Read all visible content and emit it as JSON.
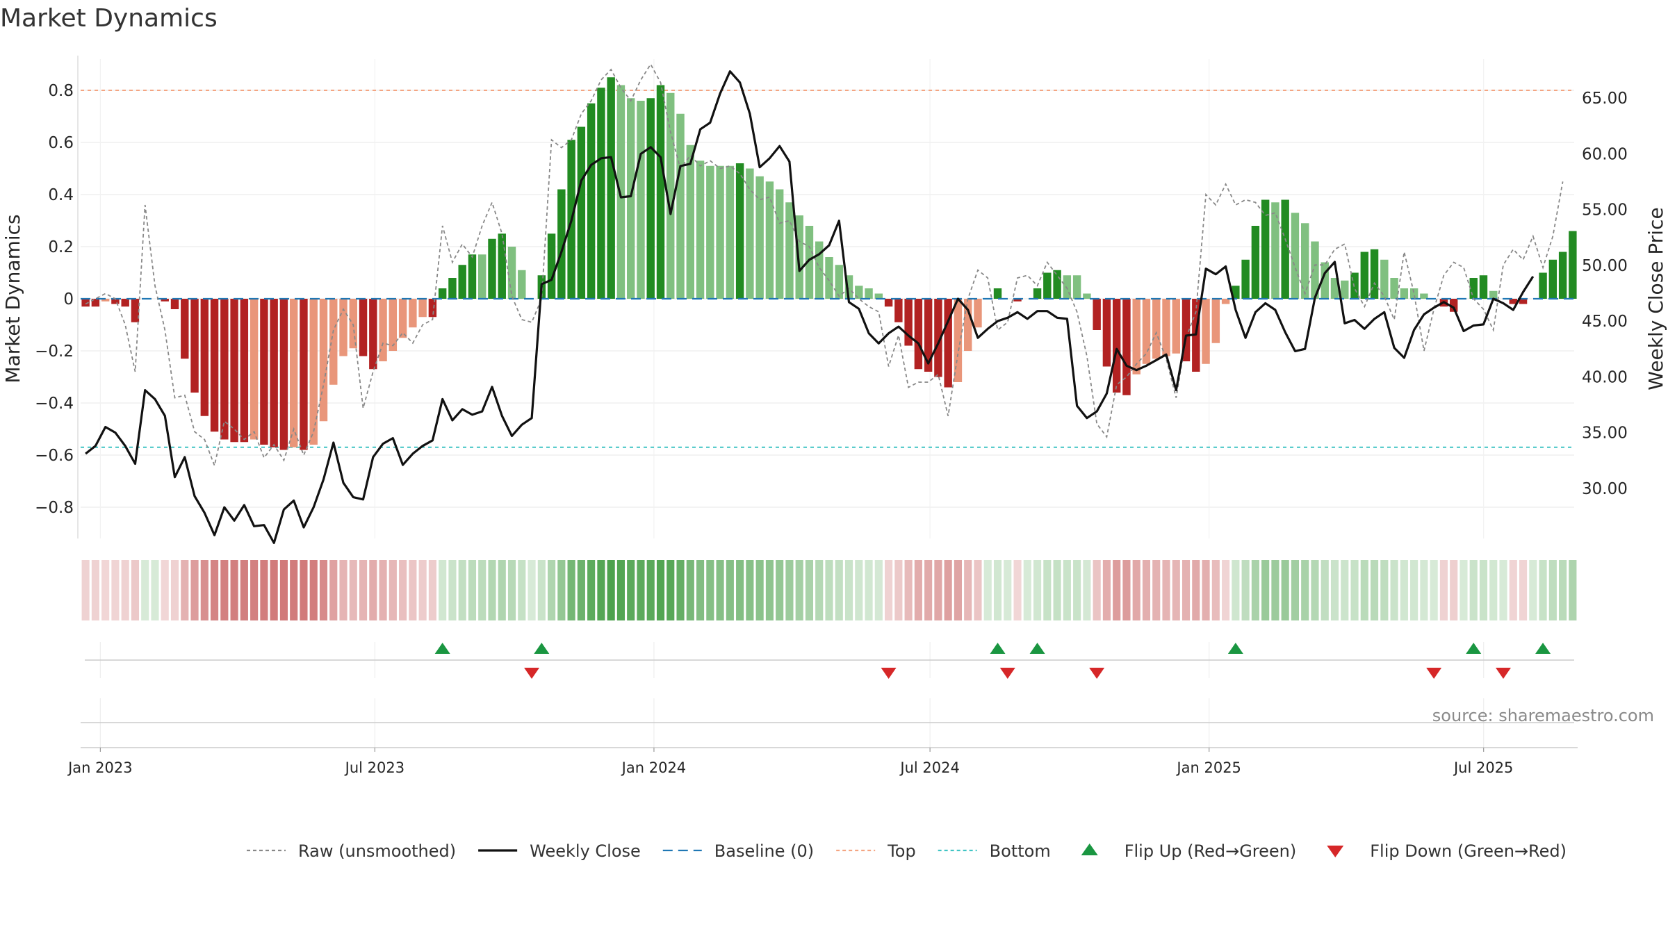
{
  "chart_data": {
    "title": "Market Dynamics",
    "type": "bar",
    "ylabel": "Market Dynamics",
    "y2label": "Weekly Close Price",
    "ylim": [
      -0.92,
      0.92
    ],
    "y2lim": [
      25.5,
      68.5
    ],
    "yticks": [
      0.8,
      0.6,
      0.4,
      0.2,
      0,
      -0.2,
      -0.4,
      -0.6,
      -0.8
    ],
    "ytick_labels": [
      "0.8",
      "0.6",
      "0.4",
      "0.2",
      "0",
      "−0.2",
      "−0.4",
      "−0.6",
      "−0.8"
    ],
    "y2ticks": [
      65,
      60,
      55,
      50,
      45,
      40,
      35,
      30
    ],
    "y2tick_labels": [
      "65.00",
      "60.00",
      "55.00",
      "50.00",
      "45.00",
      "40.00",
      "35.00",
      "30.00"
    ],
    "x_start": "2022-12-19",
    "x_end": "2025-09-01",
    "date_ticks": [
      "2023-01-01",
      "2023-07-01",
      "2024-01-01",
      "2024-07-01",
      "2025-01-01",
      "2025-07-01"
    ],
    "date_tick_labels": [
      "Jan 2023",
      "Jul 2023",
      "Jan 2024",
      "Jul 2024",
      "Jan 2025",
      "Jul 2025"
    ],
    "top_level": 0.8,
    "bottom_level": -0.57,
    "baseline": 0,
    "grid": true,
    "legend_position": "bottom",
    "colors": {
      "strong_up": "#228b22",
      "weak_up": "#80c080",
      "strong_down": "#b22222",
      "weak_down": "#e9967a",
      "close": "#111111",
      "raw": "#888888",
      "baseline": "#1f77b4",
      "top": "#f4a582",
      "bottom": "#40c4c4",
      "flip_up": "#1a9641",
      "flip_down": "#d62728"
    },
    "legend": [
      {
        "key": "raw",
        "label": "Raw (unsmoothed)"
      },
      {
        "key": "close",
        "label": "Weekly Close"
      },
      {
        "key": "baseline",
        "label": "Baseline (0)"
      },
      {
        "key": "top",
        "label": "Top"
      },
      {
        "key": "bottom",
        "label": "Bottom"
      },
      {
        "key": "flip_up",
        "label": "Flip Up (Red→Green)"
      },
      {
        "key": "flip_down",
        "label": "Flip Down (Green→Red)"
      }
    ],
    "source": "source: sharemaestro.com",
    "series": [
      {
        "name": "Market Dynamics",
        "values": [
          -0.03,
          -0.03,
          -0.01,
          -0.02,
          -0.03,
          -0.09,
          0.0,
          0.0,
          -0.01,
          -0.04,
          -0.23,
          -0.36,
          -0.45,
          -0.51,
          -0.54,
          -0.55,
          -0.55,
          -0.54,
          -0.56,
          -0.57,
          -0.58,
          -0.57,
          -0.58,
          -0.56,
          -0.47,
          -0.33,
          -0.22,
          -0.19,
          -0.22,
          -0.27,
          -0.24,
          -0.2,
          -0.15,
          -0.11,
          -0.07,
          -0.07,
          0.04,
          0.08,
          0.13,
          0.17,
          0.17,
          0.23,
          0.25,
          0.2,
          0.11,
          0.0,
          0.09,
          0.25,
          0.42,
          0.61,
          0.66,
          0.75,
          0.81,
          0.85,
          0.82,
          0.77,
          0.76,
          0.77,
          0.82,
          0.79,
          0.71,
          0.59,
          0.53,
          0.51,
          0.51,
          0.51,
          0.52,
          0.5,
          0.47,
          0.45,
          0.42,
          0.37,
          0.32,
          0.28,
          0.22,
          0.16,
          0.13,
          0.09,
          0.05,
          0.04,
          0.02,
          -0.03,
          -0.09,
          -0.18,
          -0.27,
          -0.28,
          -0.3,
          -0.34,
          -0.32,
          -0.2,
          -0.11,
          0.0,
          0.04,
          0.0,
          -0.01,
          0.0,
          0.04,
          0.1,
          0.11,
          0.09,
          0.09,
          0.02,
          -0.12,
          -0.26,
          -0.36,
          -0.37,
          -0.29,
          -0.25,
          -0.23,
          -0.22,
          -0.21,
          -0.24,
          -0.28,
          -0.25,
          -0.17,
          -0.02,
          0.05,
          0.15,
          0.28,
          0.38,
          0.37,
          0.38,
          0.33,
          0.29,
          0.22,
          0.14,
          0.08,
          0.07,
          0.1,
          0.18,
          0.19,
          0.15,
          0.08,
          0.04,
          0.04,
          0.02,
          0.0,
          -0.03,
          -0.05,
          0.0,
          0.08,
          0.09,
          0.03,
          0.0,
          -0.02,
          -0.02,
          0.0,
          0.1,
          0.15,
          0.18,
          0.26
        ]
      },
      {
        "name": "Raw (unsmoothed)",
        "values": [
          -0.02,
          0.0,
          0.02,
          0.0,
          -0.1,
          -0.28,
          0.36,
          0.05,
          -0.12,
          -0.38,
          -0.37,
          -0.51,
          -0.54,
          -0.64,
          -0.47,
          -0.5,
          -0.54,
          -0.51,
          -0.61,
          -0.56,
          -0.62,
          -0.5,
          -0.6,
          -0.51,
          -0.33,
          -0.12,
          -0.04,
          -0.1,
          -0.42,
          -0.28,
          -0.17,
          -0.18,
          -0.13,
          -0.17,
          -0.1,
          -0.08,
          0.28,
          0.14,
          0.21,
          0.16,
          0.28,
          0.37,
          0.25,
          0.01,
          -0.08,
          -0.09,
          0.0,
          0.61,
          0.58,
          0.61,
          0.71,
          0.76,
          0.84,
          0.88,
          0.81,
          0.76,
          0.84,
          0.9,
          0.83,
          0.64,
          0.5,
          0.55,
          0.51,
          0.53,
          0.5,
          0.51,
          0.48,
          0.42,
          0.38,
          0.39,
          0.29,
          0.3,
          0.22,
          0.2,
          0.12,
          0.07,
          0.01,
          0.04,
          0.0,
          -0.03,
          -0.05,
          -0.26,
          -0.14,
          -0.34,
          -0.32,
          -0.32,
          -0.29,
          -0.45,
          -0.21,
          0.0,
          0.11,
          0.08,
          -0.12,
          -0.09,
          0.08,
          0.09,
          0.05,
          0.14,
          0.09,
          0.04,
          -0.05,
          -0.22,
          -0.48,
          -0.53,
          -0.33,
          -0.3,
          -0.25,
          -0.21,
          -0.13,
          -0.23,
          -0.38,
          -0.15,
          -0.05,
          0.4,
          0.36,
          0.44,
          0.36,
          0.38,
          0.37,
          0.32,
          0.33,
          0.23,
          0.12,
          0.02,
          0.13,
          0.13,
          0.19,
          0.21,
          0.04,
          -0.03,
          0.06,
          0.01,
          -0.08,
          0.18,
          0.02,
          -0.2,
          -0.04,
          0.09,
          0.14,
          0.12,
          0.0,
          -0.04,
          -0.12,
          0.13,
          0.19,
          0.15,
          0.24,
          0.12,
          0.24,
          0.45
        ]
      },
      {
        "name": "Weekly Close",
        "values": [
          33.1,
          33.8,
          35.5,
          35.0,
          33.8,
          32.2,
          38.8,
          38.0,
          36.5,
          31.0,
          32.8,
          29.3,
          27.8,
          25.8,
          28.3,
          27.1,
          28.5,
          26.6,
          26.7,
          25.1,
          28.1,
          28.9,
          26.5,
          28.3,
          30.8,
          34.1,
          30.5,
          29.2,
          29.0,
          32.8,
          34.0,
          34.5,
          32.1,
          33.1,
          33.8,
          34.3,
          38.0,
          36.1,
          37.1,
          36.6,
          36.9,
          39.1,
          36.5,
          34.7,
          35.7,
          36.3,
          48.3,
          48.7,
          51.2,
          54.0,
          57.6,
          59.0,
          59.6,
          59.7,
          56.1,
          56.2,
          60.0,
          60.6,
          59.7,
          54.6,
          58.9,
          59.1,
          62.2,
          62.8,
          65.4,
          67.4,
          66.4,
          63.6,
          58.8,
          59.6,
          60.7,
          59.3,
          49.5,
          50.5,
          51.0,
          51.8,
          54.0,
          46.7,
          46.1,
          43.9,
          43.0,
          43.9,
          44.5,
          43.7,
          43.0,
          41.2,
          43.0,
          45.0,
          47.0,
          46.0,
          43.5,
          44.3,
          45.0,
          45.3,
          45.8,
          45.2,
          45.9,
          45.9,
          45.3,
          45.2,
          37.4,
          36.3,
          36.9,
          38.5,
          42.5,
          41.0,
          40.6,
          41.0,
          41.5,
          42.0,
          38.8,
          43.7,
          43.8,
          49.7,
          49.2,
          49.9,
          46.0,
          43.5,
          45.8,
          46.6,
          46.0,
          44.0,
          42.3,
          42.5,
          47.1,
          49.3,
          50.3,
          44.8,
          45.1,
          44.3,
          45.2,
          45.8,
          42.6,
          41.7,
          44.2,
          45.6,
          46.2,
          46.7,
          46.2,
          44.1,
          44.6,
          44.7,
          47.0,
          46.6,
          46.0,
          47.6,
          49.0
        ]
      }
    ]
  }
}
